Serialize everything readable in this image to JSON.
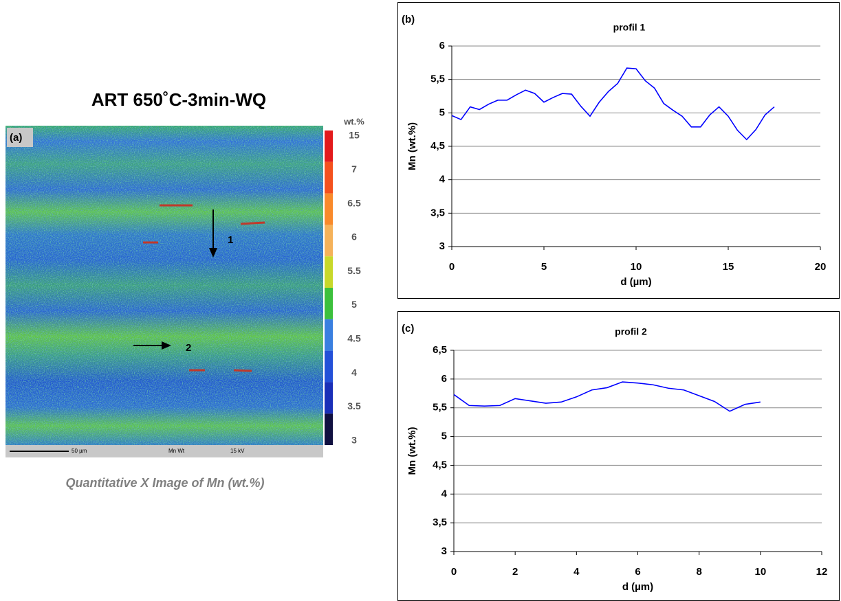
{
  "figure": {
    "title": "ART 650˚C-3min-WQ",
    "panel_label": "(a)",
    "colorbar_title": "wt.%",
    "colorbar_labels": [
      "15",
      "7",
      "6.5",
      "6",
      "5.5",
      "5",
      "4.5",
      "4",
      "3.5",
      "3"
    ],
    "arrow_labels": [
      "1",
      "2"
    ],
    "scale_bar": "50 µm",
    "signal": "Mn Wt",
    "voltage": "15 kV",
    "caption": "Quantitative X Image of Mn  (wt.%)"
  },
  "chart_data": [
    {
      "type": "line",
      "panel_label": "(b)",
      "title": "profil 1",
      "x_label": "d (µm)",
      "y_label": "Mn (wt.%)",
      "x": [
        0,
        0.5,
        1,
        1.5,
        2,
        2.5,
        3,
        3.5,
        4,
        4.5,
        5,
        5.5,
        6,
        6.5,
        7,
        7.5,
        8,
        8.5,
        9,
        9.5,
        10,
        10.5,
        11,
        11.5,
        12,
        12.5,
        13,
        13.5,
        14,
        14.5,
        15,
        15.5,
        16,
        16.5,
        17,
        17.5
      ],
      "series": [
        {
          "color": "#0000ff",
          "values": [
            4.96,
            4.9,
            5.09,
            5.05,
            5.13,
            5.19,
            5.19,
            5.27,
            5.34,
            5.29,
            5.16,
            5.23,
            5.29,
            5.28,
            5.1,
            4.95,
            5.16,
            5.32,
            5.44,
            5.67,
            5.66,
            5.48,
            5.37,
            5.14,
            5.04,
            4.95,
            4.79,
            4.79,
            4.97,
            5.09,
            4.95,
            4.74,
            4.6,
            4.75,
            4.97,
            5.09
          ]
        }
      ],
      "xlim": [
        0,
        20
      ],
      "xticks": [
        0,
        5,
        10,
        15,
        20
      ],
      "ylim": [
        3,
        6
      ],
      "yticks": [
        3,
        {
          "value": 3.5,
          "label": "3,5"
        },
        4,
        {
          "value": 4.5,
          "label": "4,5"
        },
        5,
        {
          "value": 5.5,
          "label": "5,5"
        },
        6
      ],
      "grid": true
    },
    {
      "type": "line",
      "panel_label": "(c)",
      "title": "profil 2",
      "x_label": "d (µm)",
      "y_label": "Mn (wt.%)",
      "x": [
        0,
        0.5,
        1,
        1.5,
        2,
        2.5,
        3,
        3.5,
        4,
        4.5,
        5,
        5.5,
        6,
        6.5,
        7,
        7.5,
        8,
        8.5,
        9,
        9.5,
        10
      ],
      "series": [
        {
          "color": "#0000ff",
          "values": [
            5.73,
            5.54,
            5.53,
            5.54,
            5.66,
            5.62,
            5.58,
            5.6,
            5.69,
            5.81,
            5.85,
            5.95,
            5.93,
            5.9,
            5.84,
            5.81,
            5.71,
            5.61,
            5.44,
            5.56,
            5.6
          ]
        }
      ],
      "xlim": [
        0,
        12
      ],
      "xticks": [
        0,
        2,
        4,
        6,
        8,
        10,
        12
      ],
      "ylim": [
        3,
        6.5
      ],
      "yticks": [
        3,
        {
          "value": 3.5,
          "label": "3,5"
        },
        4,
        {
          "value": 4.5,
          "label": "4,5"
        },
        5,
        {
          "value": 5.5,
          "label": "5,5"
        },
        6,
        {
          "value": 6.5,
          "label": "6,5"
        }
      ],
      "grid": true
    }
  ]
}
